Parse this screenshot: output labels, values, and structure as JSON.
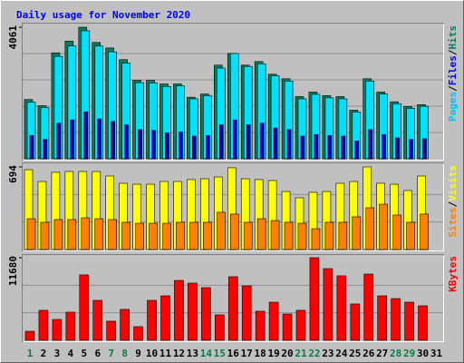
{
  "title": "Daily usage for November 2020",
  "legend_separator": "/",
  "chart_data": {
    "type": "bar",
    "categories": [
      "1",
      "2",
      "3",
      "4",
      "5",
      "6",
      "7",
      "8",
      "9",
      "10",
      "11",
      "12",
      "13",
      "14",
      "15",
      "16",
      "17",
      "18",
      "19",
      "20",
      "21",
      "22",
      "23",
      "24",
      "25",
      "26",
      "27",
      "28",
      "29",
      "30",
      "31"
    ],
    "category_colors": [
      "#008040",
      "#000000",
      "#000000",
      "#000000",
      "#000000",
      "#000000",
      "#008040",
      "#008040",
      "#000000",
      "#000000",
      "#000000",
      "#000000",
      "#000000",
      "#008040",
      "#008040",
      "#000000",
      "#000000",
      "#000000",
      "#000000",
      "#000000",
      "#008040",
      "#008040",
      "#000000",
      "#000000",
      "#000000",
      "#000000",
      "#000000",
      "#008040",
      "#008040",
      "#000000",
      "#000000"
    ],
    "grid": true,
    "panels": [
      {
        "ylim": [
          0,
          4061
        ],
        "yticks": [
          4061
        ],
        "grid_lines": 4,
        "series": [
          {
            "name": "Hits",
            "color": "#008060",
            "values": [
              1830,
              1640,
              3270,
              3630,
              4061,
              3590,
              3420,
              3060,
              2420,
              2420,
              2310,
              2310,
              1900,
              2000,
              2890,
              3250,
              2890,
              3000,
              2610,
              2470,
              1920,
              2060,
              1950,
              1920,
              1500,
              2470,
              2060,
              1760,
              1610,
              1670,
              null
            ]
          },
          {
            "name": "Files",
            "color": "#00e0ff",
            "values": [
              1750,
              1580,
              3160,
              3480,
              3950,
              3480,
              3300,
              2950,
              2350,
              2340,
              2230,
              2250,
              1850,
              1950,
              2800,
              3250,
              2850,
              2930,
              2560,
              2400,
              1850,
              1990,
              1880,
              1850,
              1440,
              2400,
              2000,
              1700,
              1560,
              1620,
              null
            ]
          },
          {
            "name": "Pages",
            "color": "#0000c0",
            "values": [
              720,
              600,
              1100,
              1200,
              1450,
              1230,
              1150,
              1050,
              900,
              880,
              800,
              830,
              700,
              720,
              1050,
              1200,
              1050,
              1100,
              950,
              900,
              700,
              750,
              720,
              700,
              550,
              900,
              750,
              650,
              600,
              620,
              null
            ]
          }
        ]
      },
      {
        "ylim": [
          0,
          694
        ],
        "yticks": [
          694
        ],
        "grid_lines": 2,
        "series": [
          {
            "name": "Visits",
            "color": "#ffff00",
            "values": [
              671,
              572,
              649,
              656,
              656,
              656,
              618,
              557,
              549,
              549,
              572,
              572,
              588,
              595,
              610,
              687,
              595,
              588,
              580,
              488,
              435,
              481,
              488,
              557,
              572,
              694,
              557,
              549,
              496,
              618,
              null
            ]
          },
          {
            "name": "Sites",
            "color": "#ff8000",
            "values": [
              259,
              229,
              252,
              252,
              267,
              259,
              252,
              229,
              221,
              221,
              221,
              229,
              229,
              229,
              313,
              298,
              229,
              259,
              244,
              229,
              221,
              175,
              229,
              229,
              275,
              351,
              381,
              290,
              229,
              298,
              null
            ]
          }
        ]
      },
      {
        "ylim": [
          0,
          11680
        ],
        "yticks": [
          11680
        ],
        "grid_lines": 2,
        "series": [
          {
            "name": "KBytes",
            "color": "#ff0000",
            "values": [
              1280,
              4240,
              2950,
              3980,
              9250,
              5650,
              2700,
              4370,
              1930,
              5650,
              6290,
              8470,
              8090,
              7450,
              3600,
              8990,
              7700,
              4110,
              5390,
              3720,
              4240,
              11680,
              10140,
              9120,
              5140,
              9370,
              6290,
              5900,
              5390,
              4880,
              null
            ]
          }
        ]
      }
    ]
  }
}
